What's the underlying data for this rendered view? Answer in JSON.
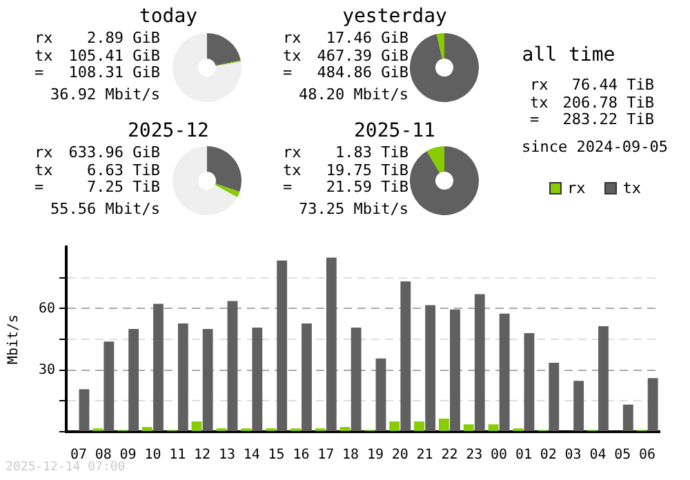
{
  "chart_data": [
    {
      "type": "donut",
      "title": "today",
      "categories": [
        null,
        null,
        null
      ],
      "values": [
        21.6,
        0.6,
        77.8
      ],
      "colors": [
        "#606060",
        "#88cc00",
        "#efefef"
      ],
      "annotations": [
        "rx",
        "2.89 GiB",
        "tx",
        "105.41 GiB",
        "=",
        "108.31 GiB",
        "36.92 Mbit/s"
      ]
    },
    {
      "type": "donut",
      "title": "yesterday",
      "categories": [
        null,
        null
      ],
      "values": [
        96.4,
        3.6
      ],
      "colors": [
        "#606060",
        "#88cc00"
      ],
      "annotations": [
        "rx",
        "17.46 GiB",
        "tx",
        "467.39 GiB",
        "=",
        "484.86 GiB",
        "48.20 Mbit/s"
      ]
    },
    {
      "type": "other",
      "title": "all time",
      "annotations": [
        "rx",
        "76.44 TiB",
        "tx",
        "206.78 TiB",
        "=",
        "283.22 TiB",
        "since 2024-09-05"
      ]
    },
    {
      "type": "donut",
      "title": "2025-12",
      "categories": [
        null,
        null,
        null
      ],
      "values": [
        30.2,
        2.8,
        67
      ],
      "colors": [
        "#606060",
        "#88cc00",
        "#efefef"
      ],
      "annotations": [
        "rx",
        "633.96 GiB",
        "tx",
        "6.63 TiB",
        "=",
        "7.25 TiB",
        "55.56 Mbit/s"
      ]
    },
    {
      "type": "donut",
      "title": "2025-11",
      "categories": [
        null,
        null
      ],
      "values": [
        91.5,
        8.5
      ],
      "colors": [
        "#606060",
        "#88cc00"
      ],
      "annotations": [
        "rx",
        "1.83 TiB",
        "tx",
        "19.75 TiB",
        "=",
        "21.59 TiB",
        "73.25 Mbit/s"
      ]
    },
    {
      "type": "bar",
      "ylabel": "Mbit/s",
      "categories": [
        "07",
        "08",
        "09",
        "10",
        "11",
        "12",
        "13",
        "14",
        "15",
        "16",
        "17",
        "18",
        "19",
        "20",
        "21",
        "22",
        "23",
        "00",
        "01",
        "02",
        "03",
        "04",
        "05",
        "06"
      ],
      "series": [
        {
          "name": "rx",
          "color": "#88cc00",
          "values": [
            0,
            1.6,
            0.9,
            2.3,
            0.9,
            5,
            1.6,
            1.6,
            1.6,
            1.6,
            1.6,
            2.3,
            0.9,
            5,
            5,
            6.4,
            3.6,
            3.6,
            1.6,
            0.9,
            0,
            0.9,
            0,
            0.9
          ]
        },
        {
          "name": "tx",
          "color": "#606060",
          "values": [
            20.7,
            43.9,
            50,
            62.3,
            52.7,
            50,
            63.6,
            50.7,
            83.4,
            52.7,
            84.8,
            50.7,
            35.7,
            73.2,
            61.6,
            59.5,
            67,
            57.5,
            48,
            33.6,
            24.8,
            51.4,
            13.2,
            26.1
          ]
        }
      ],
      "ylim": [
        0,
        90
      ],
      "yticks": [
        {
          "value": 0,
          "label": null
        },
        {
          "value": 15,
          "label": null
        },
        30,
        {
          "value": 45,
          "label": null
        },
        60,
        {
          "value": 75,
          "label": null
        }
      ],
      "grid": "y",
      "legend": "top right",
      "annotations": [
        "2025-12-14 07:00"
      ]
    }
  ]
}
